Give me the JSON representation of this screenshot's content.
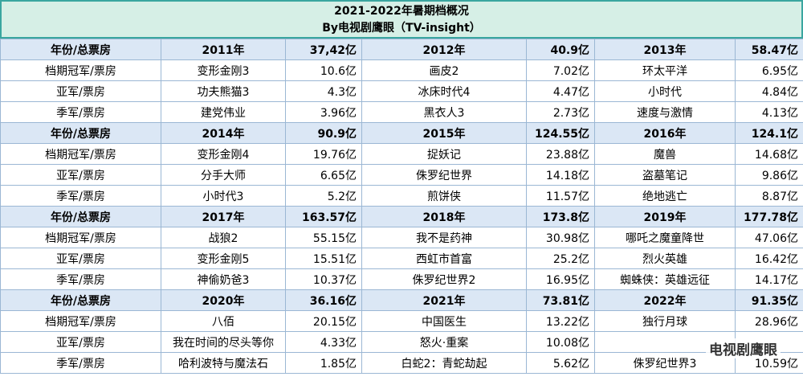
{
  "title": "2021-2022年暑期档概况",
  "subtitle": "By电视剧鹰眼（TV-insight）",
  "watermark": "电视剧鹰眼",
  "table": {
    "blocks": [
      {
        "header": [
          "年份/总票房",
          "2011年",
          "37,42亿",
          "2012年",
          "40.9亿",
          "2013年",
          "58.47亿"
        ],
        "rows": [
          [
            "档期冠军/票房",
            "变形金刚3",
            "10.6亿",
            "画皮2",
            "7.02亿",
            "环太平洋",
            "6.95亿"
          ],
          [
            "亚军/票房",
            "功夫熊猫3",
            "4.3亿",
            "冰床时代4",
            "4.47亿",
            "小时代",
            "4.84亿"
          ],
          [
            "季军/票房",
            "建党伟业",
            "3.96亿",
            "黑衣人3",
            "2.73亿",
            "速度与激情",
            "4.13亿"
          ]
        ]
      },
      {
        "header": [
          "年份/总票房",
          "2014年",
          "90.9亿",
          "2015年",
          "124.55亿",
          "2016年",
          "124.1亿"
        ],
        "rows": [
          [
            "档期冠军/票房",
            "变形金刚4",
            "19.76亿",
            "捉妖记",
            "23.88亿",
            "魔兽",
            "14.68亿"
          ],
          [
            "亚军/票房",
            "分手大师",
            "6.65亿",
            "侏罗纪世界",
            "14.18亿",
            "盗墓笔记",
            "9.86亿"
          ],
          [
            "季军/票房",
            "小时代3",
            "5.2亿",
            "煎饼侠",
            "11.57亿",
            "绝地逃亡",
            "8.87亿"
          ]
        ]
      },
      {
        "header": [
          "年份/总票房",
          "2017年",
          "163.57亿",
          "2018年",
          "173.8亿",
          "2019年",
          "177.78亿"
        ],
        "rows": [
          [
            "档期冠军/票房",
            "战狼2",
            "55.15亿",
            "我不是药神",
            "30.98亿",
            "哪吒之魔童降世",
            "47.06亿"
          ],
          [
            "亚军/票房",
            "变形金刚5",
            "15.51亿",
            "西虹市首富",
            "25.2亿",
            "烈火英雄",
            "16.42亿"
          ],
          [
            "季军/票房",
            "神偷奶爸3",
            "10.37亿",
            "侏罗纪世界2",
            "16.95亿",
            "蜘蛛侠：英雄远征",
            "14.17亿"
          ]
        ]
      },
      {
        "header": [
          "年份/总票房",
          "2020年",
          "36.16亿",
          "2021年",
          "73.81亿",
          "2022年",
          "91.35亿"
        ],
        "rows": [
          [
            "档期冠军/票房",
            "八佰",
            "20.15亿",
            "中国医生",
            "13.22亿",
            "独行月球",
            "28.96亿"
          ],
          [
            "亚军/票房",
            "我在时间的尽头等你",
            "4.33亿",
            "怒火·重案",
            "10.08亿",
            null,
            null
          ],
          [
            "季军/票房",
            "哈利波特与魔法石",
            "1.85亿",
            "白蛇2：青蛇劫起",
            "5.62亿",
            "侏罗纪世界3",
            "10.59亿"
          ]
        ]
      }
    ]
  }
}
